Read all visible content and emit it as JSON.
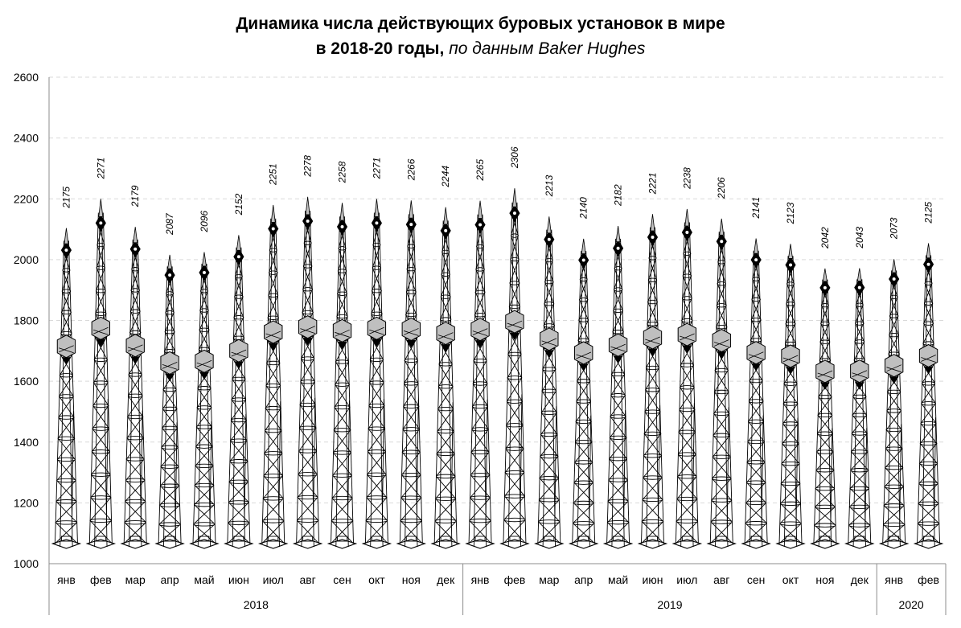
{
  "chart_data": {
    "type": "bar",
    "title_line1": "Динамика числа действующих буровых установок в мире",
    "title_line2_main": "в 2018-20 годы,",
    "title_line2_source": "по данным Baker Hughes",
    "categories": [
      "янв",
      "фев",
      "мар",
      "апр",
      "май",
      "июн",
      "июл",
      "авг",
      "сен",
      "окт",
      "ноя",
      "дек",
      "янв",
      "фев",
      "мар",
      "апр",
      "май",
      "июн",
      "июл",
      "авг",
      "сен",
      "окт",
      "ноя",
      "дек",
      "янв",
      "фев"
    ],
    "groups": [
      {
        "label": "2018",
        "count": 12
      },
      {
        "label": "2019",
        "count": 12
      },
      {
        "label": "2020",
        "count": 2
      }
    ],
    "series": [
      {
        "values": [
          2175,
          2271,
          2179,
          2087,
          2096,
          2152,
          2251,
          2278,
          2258,
          2271,
          2266,
          2244,
          2265,
          2306,
          2213,
          2140,
          2182,
          2221,
          2238,
          2206,
          2141,
          2123,
          2042,
          2043,
          2073,
          2125
        ]
      }
    ],
    "value_labels": [
      "2175",
      "2271",
      "2179",
      "2087",
      "2096",
      "2152",
      "2251",
      "2278",
      "2258",
      "2271",
      "2266",
      "2244",
      "2265",
      "2306",
      "2213",
      "2140",
      "2182",
      "2221",
      "2238",
      "2206",
      "2141",
      "2123",
      "2042",
      "2043",
      "2073",
      "2125"
    ],
    "ylim": [
      1000,
      2600
    ],
    "yticks": [
      "1000",
      "1200",
      "1400",
      "1600",
      "1800",
      "2000",
      "2200",
      "2400",
      "2600"
    ],
    "grid": true,
    "mark_style": "drilling-rig tower",
    "colors": {
      "ink": "#000000",
      "grid": "#d9d9d9",
      "axis": "#8c8c8c",
      "derrick_fill": "#bfbfbf"
    }
  }
}
